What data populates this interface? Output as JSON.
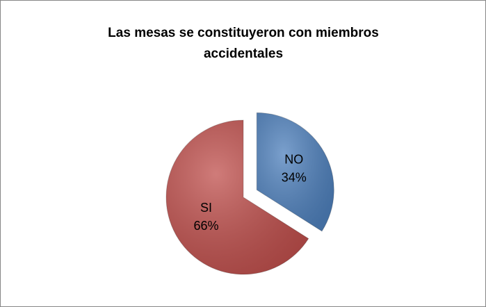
{
  "chart_data": {
    "type": "pie",
    "title": "Las mesas se constituyeron con miembros accidentales",
    "categories": [
      "NO",
      "SI"
    ],
    "values": [
      34,
      66
    ],
    "value_labels": [
      "34%",
      "66%"
    ],
    "colors": [
      "#4f81bd",
      "#c0504d"
    ],
    "exploded": [
      true,
      false
    ]
  }
}
